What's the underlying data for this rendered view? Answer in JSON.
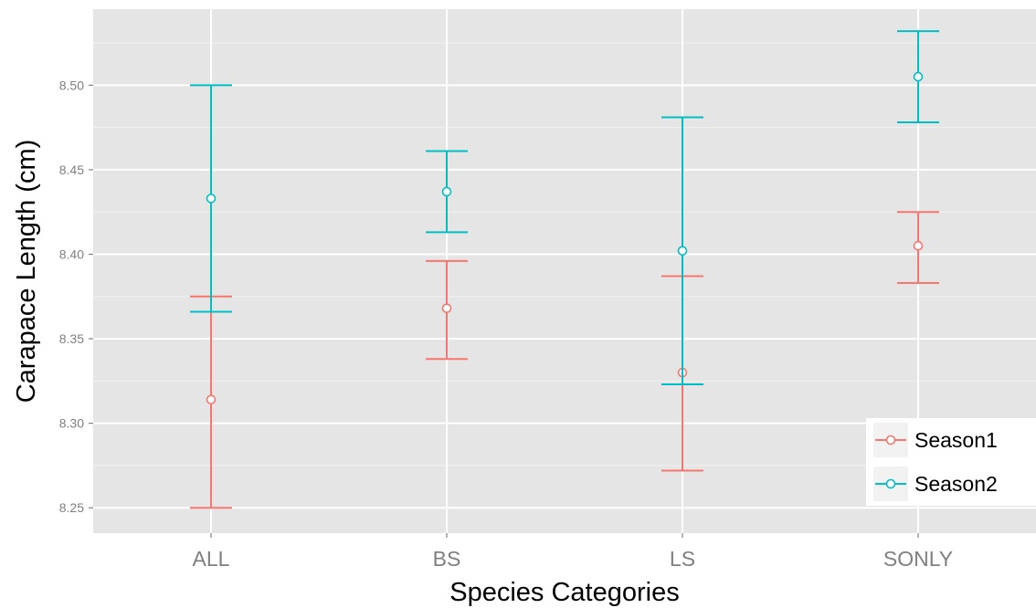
{
  "chart_data": {
    "type": "errorbar",
    "xlabel": "Species Categories",
    "ylabel": "Carapace Length (cm)",
    "categories": [
      "ALL",
      "BS",
      "LS",
      "SONLY"
    ],
    "ylim": [
      8.235,
      8.545
    ],
    "yticks": [
      "8.25",
      "8.30",
      "8.35",
      "8.40",
      "8.45",
      "8.50"
    ],
    "grid": true,
    "legend_position": "bottom-right",
    "series": [
      {
        "name": "Season1",
        "color": "#F8766D",
        "mean": [
          8.314,
          8.368,
          8.33,
          8.405
        ],
        "lower": [
          8.25,
          8.338,
          8.272,
          8.383
        ],
        "upper": [
          8.375,
          8.396,
          8.387,
          8.425
        ]
      },
      {
        "name": "Season2",
        "color": "#00BFC4",
        "mean": [
          8.433,
          8.437,
          8.402,
          8.505
        ],
        "lower": [
          8.366,
          8.413,
          8.323,
          8.478
        ],
        "upper": [
          8.5,
          8.461,
          8.481,
          8.532
        ]
      }
    ]
  }
}
